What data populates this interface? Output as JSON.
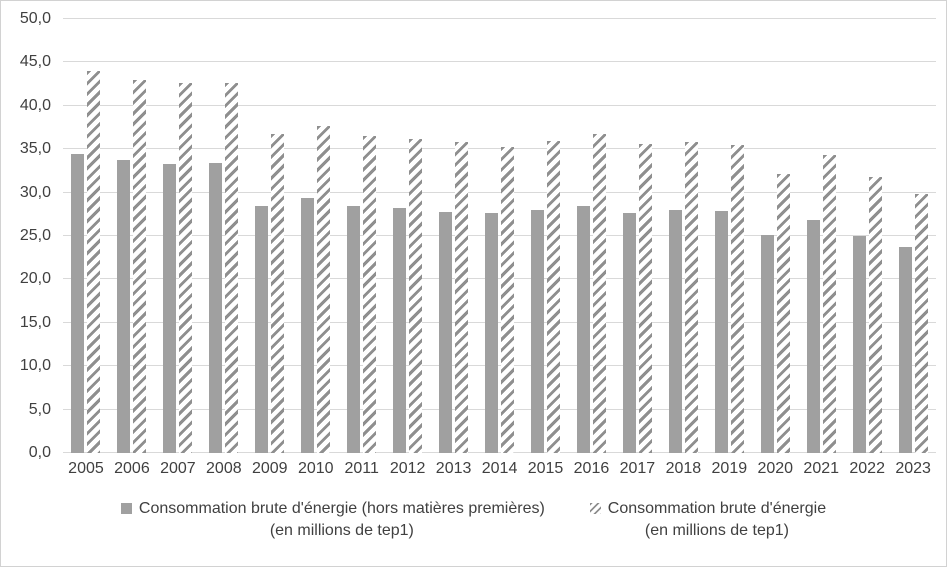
{
  "chart_data": {
    "type": "bar",
    "title": "",
    "categories": [
      "2005",
      "2006",
      "2007",
      "2008",
      "2009",
      "2010",
      "2011",
      "2012",
      "2013",
      "2014",
      "2015",
      "2016",
      "2017",
      "2018",
      "2019",
      "2020",
      "2021",
      "2022",
      "2023"
    ],
    "series": [
      {
        "name": "Consommation brute d'énergie (hors matières premières) (en millions de tep1)",
        "style": "solid",
        "values": [
          34.4,
          33.7,
          33.3,
          33.4,
          28.5,
          29.4,
          28.5,
          28.2,
          27.8,
          27.7,
          28.0,
          28.5,
          27.7,
          28.0,
          27.9,
          25.1,
          26.8,
          25.0,
          23.7
        ]
      },
      {
        "name": "Consommation brute d'énergie (en millions de tep1)",
        "style": "hatched",
        "values": [
          44.0,
          43.0,
          42.6,
          42.6,
          36.7,
          37.7,
          36.5,
          36.2,
          35.8,
          35.3,
          36.0,
          36.7,
          35.6,
          35.8,
          35.5,
          32.2,
          34.3,
          31.8,
          29.8
        ]
      }
    ],
    "ylim": [
      0,
      50
    ],
    "ytick_values": [
      0,
      5,
      10,
      15,
      20,
      25,
      30,
      35,
      40,
      45,
      50
    ],
    "ytick_labels": [
      "0,0",
      "5,0",
      "10,0",
      "15,0",
      "20,0",
      "25,0",
      "30,0",
      "35,0",
      "40,0",
      "45,0",
      "50,0"
    ],
    "grid": true,
    "legend_position": "bottom"
  },
  "legend": {
    "series1_line1": "Consommation brute d'énergie (hors matières premières)",
    "series1_line2": "(en millions de tep1)",
    "series2_line1": "Consommation brute d'énergie",
    "series2_line2": "(en millions de tep1)"
  },
  "colors": {
    "bar_solid": "#a0a0a0",
    "bar_hatch": "#8f8f8f",
    "gridline": "#d9d9d9",
    "axis_text": "#404040",
    "chart_border": "#d2d2d2",
    "background": "#ffffff"
  }
}
